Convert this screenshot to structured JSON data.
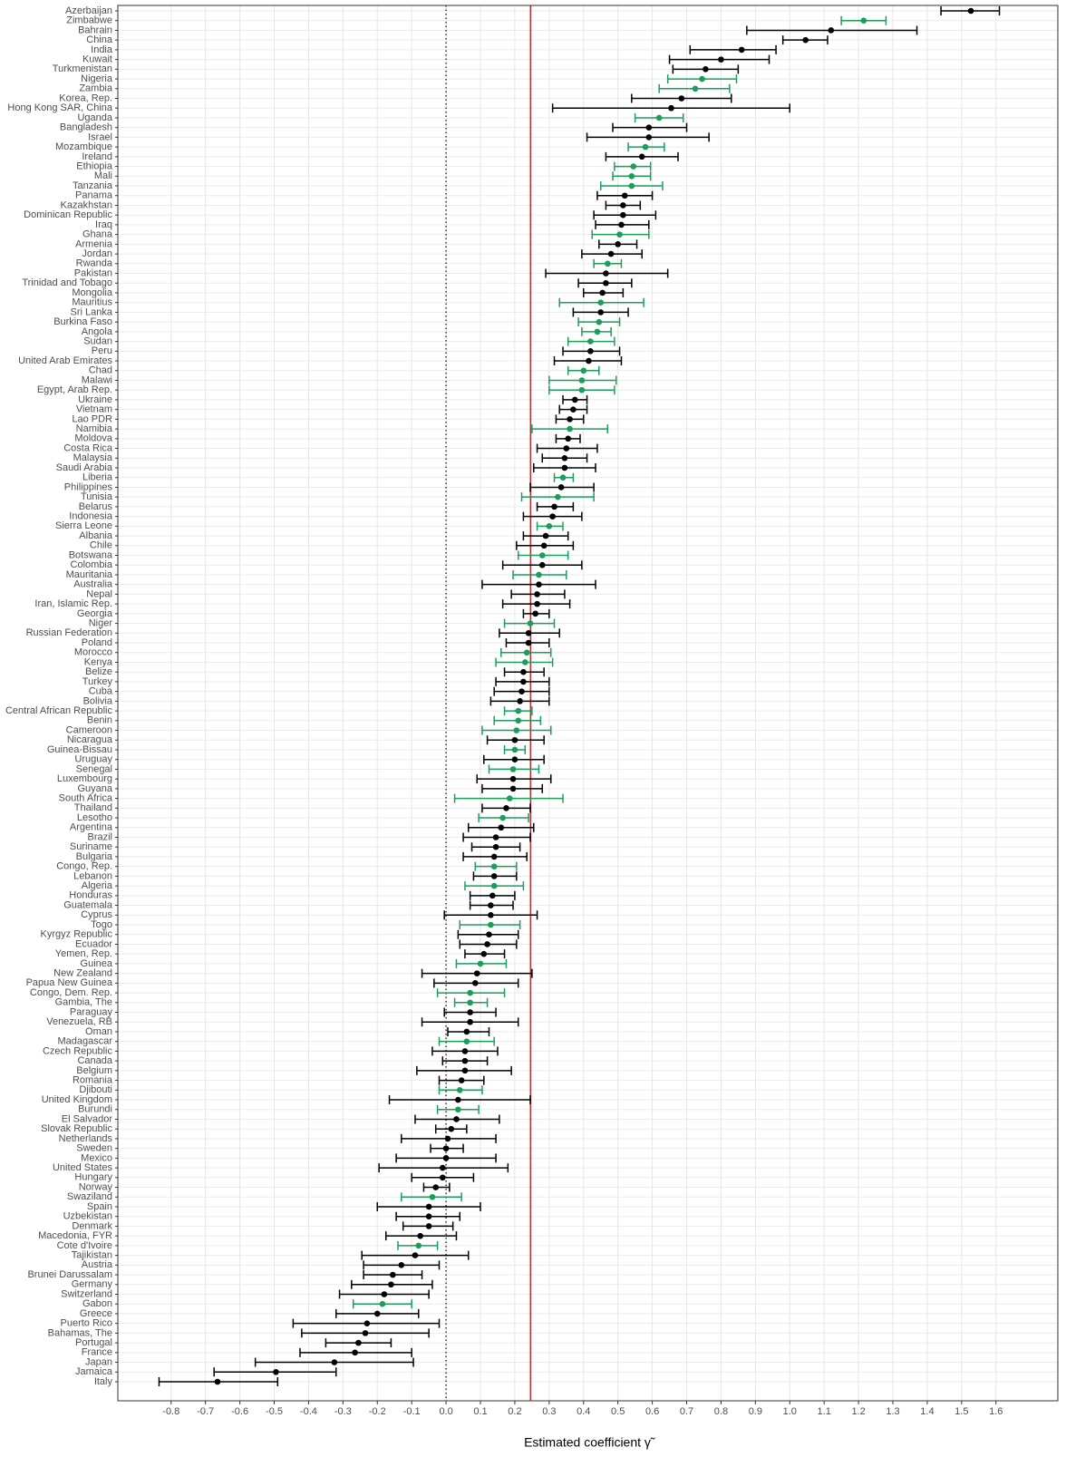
{
  "chart_data": {
    "type": "forest",
    "x_label": "Estimated coefficient γ̃",
    "categories": [
      "Azerbaijan",
      "Zimbabwe",
      "Bahrain",
      "China",
      "India",
      "Kuwait",
      "Turkmenistan",
      "Nigeria",
      "Zambia",
      "Korea, Rep.",
      "Hong Kong SAR, China",
      "Uganda",
      "Bangladesh",
      "Israel",
      "Mozambique",
      "Ireland",
      "Ethiopia",
      "Mali",
      "Tanzania",
      "Panama",
      "Kazakhstan",
      "Dominican Republic",
      "Iraq",
      "Ghana",
      "Armenia",
      "Jordan",
      "Rwanda",
      "Pakistan",
      "Trinidad and Tobago",
      "Mongolia",
      "Mauritius",
      "Sri Lanka",
      "Burkina Faso",
      "Angola",
      "Sudan",
      "Peru",
      "United Arab Emirates",
      "Chad",
      "Malawi",
      "Egypt, Arab Rep.",
      "Ukraine",
      "Vietnam",
      "Lao PDR",
      "Namibia",
      "Moldova",
      "Costa Rica",
      "Malaysia",
      "Saudi Arabia",
      "Liberia",
      "Philippines",
      "Tunisia",
      "Belarus",
      "Indonesia",
      "Sierra Leone",
      "Albania",
      "Chile",
      "Botswana",
      "Colombia",
      "Mauritania",
      "Australia",
      "Nepal",
      "Iran, Islamic Rep.",
      "Georgia",
      "Niger",
      "Russian Federation",
      "Poland",
      "Morocco",
      "Kenya",
      "Belize",
      "Turkey",
      "Cuba",
      "Bolivia",
      "Central African Republic",
      "Benin",
      "Cameroon",
      "Nicaragua",
      "Guinea-Bissau",
      "Uruguay",
      "Senegal",
      "Luxembourg",
      "Guyana",
      "South Africa",
      "Thailand",
      "Lesotho",
      "Argentina",
      "Brazil",
      "Suriname",
      "Bulgaria",
      "Congo, Rep.",
      "Lebanon",
      "Algeria",
      "Honduras",
      "Guatemala",
      "Cyprus",
      "Togo",
      "Kyrgyz Republic",
      "Ecuador",
      "Yemen, Rep.",
      "Guinea",
      "New Zealand",
      "Papua New Guinea",
      "Congo, Dem. Rep.",
      "Gambia, The",
      "Paraguay",
      "Venezuela, RB",
      "Oman",
      "Madagascar",
      "Czech Republic",
      "Canada",
      "Belgium",
      "Romania",
      "Djibouti",
      "United Kingdom",
      "Burundi",
      "El Salvador",
      "Slovak Republic",
      "Netherlands",
      "Sweden",
      "Mexico",
      "United States",
      "Hungary",
      "Norway",
      "Swaziland",
      "Spain",
      "Uzbekistan",
      "Denmark",
      "Macedonia, FYR",
      "Cote d'Ivoire",
      "Tajikistan",
      "Austria",
      "Brunei Darussalam",
      "Germany",
      "Switzerland",
      "Gabon",
      "Greece",
      "Puerto Rico",
      "Bahamas, The",
      "Portugal",
      "France",
      "Japan",
      "Jamaica",
      "Italy"
    ],
    "values": [
      1.527,
      1.215,
      1.12,
      1.046,
      0.86,
      0.8,
      0.755,
      0.745,
      0.725,
      0.685,
      0.655,
      0.62,
      0.59,
      0.59,
      0.58,
      0.57,
      0.545,
      0.54,
      0.54,
      0.52,
      0.515,
      0.515,
      0.51,
      0.505,
      0.5,
      0.48,
      0.47,
      0.465,
      0.465,
      0.455,
      0.45,
      0.45,
      0.445,
      0.44,
      0.42,
      0.42,
      0.415,
      0.4,
      0.395,
      0.395,
      0.375,
      0.37,
      0.36,
      0.36,
      0.355,
      0.35,
      0.345,
      0.345,
      0.34,
      0.335,
      0.325,
      0.315,
      0.31,
      0.3,
      0.29,
      0.285,
      0.28,
      0.28,
      0.27,
      0.27,
      0.265,
      0.265,
      0.26,
      0.245,
      0.24,
      0.24,
      0.235,
      0.23,
      0.225,
      0.225,
      0.22,
      0.215,
      0.21,
      0.21,
      0.205,
      0.2,
      0.2,
      0.2,
      0.195,
      0.195,
      0.195,
      0.185,
      0.175,
      0.165,
      0.16,
      0.145,
      0.145,
      0.14,
      0.14,
      0.14,
      0.14,
      0.135,
      0.13,
      0.13,
      0.13,
      0.125,
      0.12,
      0.11,
      0.1,
      0.09,
      0.085,
      0.07,
      0.07,
      0.07,
      0.07,
      0.06,
      0.06,
      0.055,
      0.055,
      0.055,
      0.045,
      0.04,
      0.035,
      0.035,
      0.03,
      0.015,
      0.005,
      0.0,
      0.0,
      -0.01,
      -0.01,
      -0.03,
      -0.04,
      -0.05,
      -0.05,
      -0.05,
      -0.075,
      -0.08,
      -0.09,
      -0.13,
      -0.155,
      -0.16,
      -0.18,
      -0.185,
      -0.2,
      -0.23,
      -0.235,
      -0.255,
      -0.265,
      -0.325,
      -0.495,
      -0.665
    ],
    "lower": [
      1.44,
      1.15,
      0.875,
      0.98,
      0.71,
      0.65,
      0.66,
      0.645,
      0.62,
      0.54,
      0.31,
      0.55,
      0.485,
      0.41,
      0.53,
      0.465,
      0.49,
      0.485,
      0.45,
      0.44,
      0.465,
      0.43,
      0.435,
      0.425,
      0.445,
      0.395,
      0.43,
      0.29,
      0.385,
      0.4,
      0.33,
      0.37,
      0.385,
      0.395,
      0.355,
      0.34,
      0.315,
      0.355,
      0.3,
      0.3,
      0.34,
      0.33,
      0.32,
      0.25,
      0.32,
      0.265,
      0.28,
      0.255,
      0.315,
      0.245,
      0.22,
      0.265,
      0.225,
      0.265,
      0.225,
      0.205,
      0.21,
      0.165,
      0.195,
      0.105,
      0.19,
      0.165,
      0.225,
      0.17,
      0.155,
      0.175,
      0.16,
      0.145,
      0.17,
      0.145,
      0.14,
      0.13,
      0.17,
      0.14,
      0.105,
      0.12,
      0.17,
      0.11,
      0.125,
      0.09,
      0.105,
      0.025,
      0.105,
      0.095,
      0.065,
      0.05,
      0.075,
      0.05,
      0.085,
      0.08,
      0.055,
      0.07,
      0.07,
      -0.005,
      0.04,
      0.035,
      0.04,
      0.055,
      0.03,
      -0.07,
      -0.035,
      -0.025,
      0.025,
      -0.005,
      -0.07,
      0.005,
      -0.02,
      -0.04,
      -0.01,
      -0.085,
      -0.02,
      -0.02,
      -0.165,
      -0.025,
      -0.09,
      -0.03,
      -0.13,
      -0.045,
      -0.145,
      -0.195,
      -0.1,
      -0.065,
      -0.13,
      -0.2,
      -0.145,
      -0.125,
      -0.175,
      -0.14,
      -0.245,
      -0.24,
      -0.24,
      -0.275,
      -0.31,
      -0.27,
      -0.32,
      -0.445,
      -0.42,
      -0.35,
      -0.425,
      -0.555,
      -0.675,
      -0.835
    ],
    "upper": [
      1.61,
      1.28,
      1.37,
      1.11,
      0.96,
      0.94,
      0.85,
      0.845,
      0.825,
      0.83,
      1.0,
      0.69,
      0.7,
      0.765,
      0.635,
      0.675,
      0.595,
      0.595,
      0.63,
      0.6,
      0.565,
      0.61,
      0.59,
      0.59,
      0.555,
      0.57,
      0.51,
      0.645,
      0.54,
      0.515,
      0.575,
      0.53,
      0.505,
      0.48,
      0.49,
      0.505,
      0.51,
      0.445,
      0.495,
      0.49,
      0.41,
      0.41,
      0.4,
      0.47,
      0.39,
      0.44,
      0.41,
      0.435,
      0.37,
      0.43,
      0.43,
      0.37,
      0.395,
      0.34,
      0.355,
      0.37,
      0.355,
      0.395,
      0.35,
      0.435,
      0.345,
      0.36,
      0.3,
      0.315,
      0.33,
      0.3,
      0.305,
      0.31,
      0.285,
      0.3,
      0.3,
      0.3,
      0.25,
      0.275,
      0.305,
      0.285,
      0.23,
      0.285,
      0.27,
      0.305,
      0.28,
      0.34,
      0.245,
      0.24,
      0.255,
      0.245,
      0.215,
      0.235,
      0.205,
      0.205,
      0.225,
      0.2,
      0.195,
      0.265,
      0.215,
      0.21,
      0.205,
      0.17,
      0.175,
      0.25,
      0.21,
      0.17,
      0.12,
      0.145,
      0.21,
      0.125,
      0.14,
      0.15,
      0.12,
      0.19,
      0.11,
      0.105,
      0.245,
      0.095,
      0.155,
      0.06,
      0.145,
      0.05,
      0.145,
      0.18,
      0.08,
      0.01,
      0.045,
      0.1,
      0.04,
      0.02,
      0.03,
      -0.025,
      0.065,
      -0.02,
      -0.07,
      -0.04,
      -0.05,
      -0.1,
      -0.08,
      -0.02,
      -0.05,
      -0.16,
      -0.1,
      -0.095,
      -0.32,
      -0.49
    ],
    "colors": [
      "#000000",
      "#1b9e5a",
      "#000000",
      "#000000",
      "#000000",
      "#000000",
      "#000000",
      "#1b9e5a",
      "#1b9e5a",
      "#000000",
      "#000000",
      "#1b9e5a",
      "#000000",
      "#000000",
      "#1b9e5a",
      "#000000",
      "#1b9e5a",
      "#1b9e5a",
      "#1b9e5a",
      "#000000",
      "#000000",
      "#000000",
      "#000000",
      "#1b9e5a",
      "#000000",
      "#000000",
      "#1b9e5a",
      "#000000",
      "#000000",
      "#000000",
      "#1b9e5a",
      "#000000",
      "#1b9e5a",
      "#1b9e5a",
      "#1b9e5a",
      "#000000",
      "#000000",
      "#1b9e5a",
      "#1b9e5a",
      "#1b9e5a",
      "#000000",
      "#000000",
      "#000000",
      "#1b9e5a",
      "#000000",
      "#000000",
      "#000000",
      "#000000",
      "#1b9e5a",
      "#000000",
      "#1b9e5a",
      "#000000",
      "#000000",
      "#1b9e5a",
      "#000000",
      "#000000",
      "#1b9e5a",
      "#000000",
      "#1b9e5a",
      "#000000",
      "#000000",
      "#000000",
      "#000000",
      "#1b9e5a",
      "#000000",
      "#000000",
      "#1b9e5a",
      "#1b9e5a",
      "#000000",
      "#000000",
      "#000000",
      "#000000",
      "#1b9e5a",
      "#1b9e5a",
      "#1b9e5a",
      "#000000",
      "#1b9e5a",
      "#000000",
      "#1b9e5a",
      "#000000",
      "#000000",
      "#1b9e5a",
      "#000000",
      "#1b9e5a",
      "#000000",
      "#000000",
      "#000000",
      "#000000",
      "#1b9e5a",
      "#000000",
      "#1b9e5a",
      "#000000",
      "#000000",
      "#000000",
      "#1b9e5a",
      "#000000",
      "#000000",
      "#000000",
      "#1b9e5a",
      "#000000",
      "#000000",
      "#1b9e5a",
      "#1b9e5a",
      "#000000",
      "#000000",
      "#000000",
      "#1b9e5a",
      "#000000",
      "#000000",
      "#000000",
      "#000000",
      "#1b9e5a",
      "#000000",
      "#1b9e5a",
      "#000000",
      "#000000",
      "#000000",
      "#000000",
      "#000000",
      "#000000",
      "#000000",
      "#000000",
      "#1b9e5a",
      "#000000",
      "#000000",
      "#000000",
      "#000000",
      "#1b9e5a",
      "#000000",
      "#000000",
      "#000000",
      "#000000",
      "#000000",
      "#1b9e5a",
      "#000000",
      "#000000",
      "#000000",
      "#000000",
      "#000000",
      "#000000",
      "#000000",
      "#000000"
    ],
    "xlim": [
      -0.955,
      1.78
    ],
    "xticks": [
      -0.8,
      -0.7,
      -0.6,
      -0.5,
      -0.4,
      -0.3,
      -0.2,
      -0.1,
      {
        "value": 0,
        "label": "0.0"
      },
      0.1,
      0.2,
      0.3,
      0.4,
      0.5,
      0.6,
      0.7,
      0.8,
      0.9,
      {
        "value": 1,
        "label": "1.0"
      },
      1.1,
      1.2,
      1.3,
      1.4,
      1.5,
      1.6
    ],
    "grid": true,
    "reference_lines": [
      {
        "value": 0,
        "color": "#000000",
        "style": "dotted"
      },
      {
        "value": 0.246,
        "color": "#e41a1c",
        "style": "solid"
      }
    ]
  }
}
